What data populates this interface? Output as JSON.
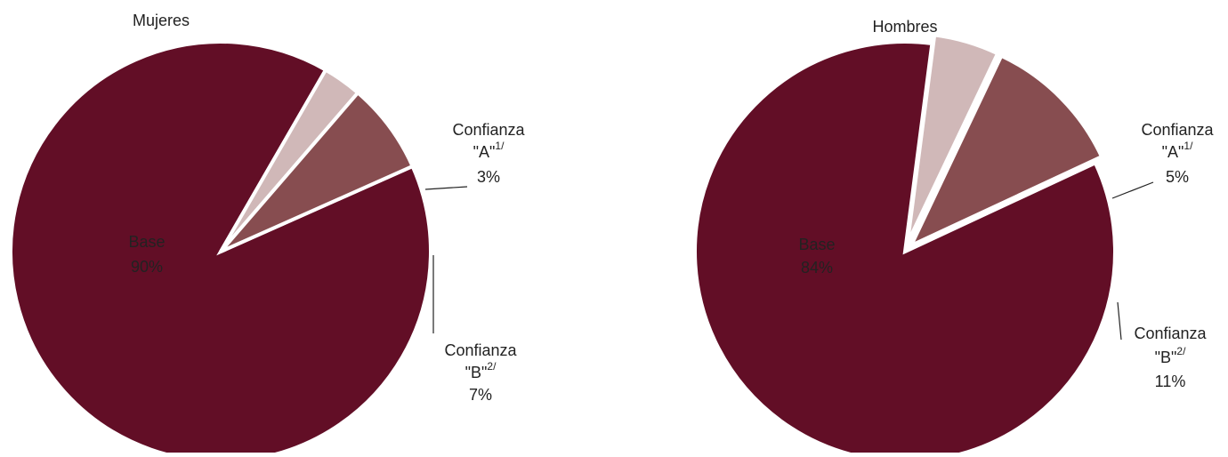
{
  "chart_data": [
    {
      "type": "pie",
      "title": "Mujeres",
      "categories": [
        "Base",
        "Confianza \"A\"",
        "Confianza \"B\""
      ],
      "superscripts": [
        null,
        "1/",
        "2/"
      ],
      "values": [
        90,
        3,
        7
      ],
      "value_labels": [
        "90%",
        "3%",
        "7%"
      ],
      "colors": [
        "#620e26",
        "#d0b8b8",
        "#874d50"
      ]
    },
    {
      "type": "pie",
      "title": "Hombres",
      "categories": [
        "Base",
        "Confianza \"A\"",
        "Confianza \"B\""
      ],
      "superscripts": [
        null,
        "1/",
        "2/"
      ],
      "values": [
        84,
        5,
        11
      ],
      "value_labels": [
        "84%",
        "5%",
        "11%"
      ],
      "colors": [
        "#620e26",
        "#d0b8b8",
        "#874d50"
      ]
    }
  ]
}
